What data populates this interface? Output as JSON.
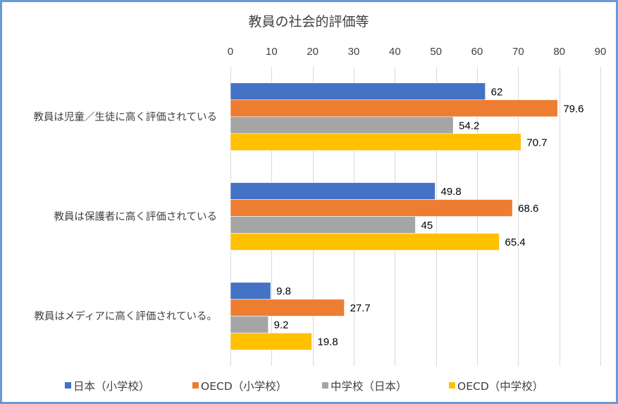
{
  "chart_data": {
    "type": "bar",
    "orientation": "horizontal",
    "title": "教員の社会的評価等",
    "xlabel": "",
    "ylabel": "",
    "xlim": [
      0,
      90
    ],
    "x_ticks": [
      0,
      10,
      20,
      30,
      40,
      50,
      60,
      70,
      80,
      90
    ],
    "x_axis_position": "top",
    "grid": true,
    "legend_position": "bottom",
    "categories": [
      "教員は児童／生徒に高く評価されている",
      "教員は保護者に高く評価されている",
      "教員はメディアに高く評価されている。"
    ],
    "series": [
      {
        "name": "日本（小学校）",
        "color": "#4472C4",
        "values": [
          62,
          49.8,
          9.8
        ]
      },
      {
        "name": "OECD（小学校）",
        "color": "#ED7D31",
        "values": [
          79.6,
          68.6,
          27.7
        ]
      },
      {
        "name": "中学校（日本）",
        "color": "#A5A5A5",
        "values": [
          54.2,
          45,
          9.2
        ]
      },
      {
        "name": "OECD（中学校）",
        "color": "#FFC000",
        "values": [
          70.7,
          65.4,
          19.8
        ]
      }
    ]
  }
}
